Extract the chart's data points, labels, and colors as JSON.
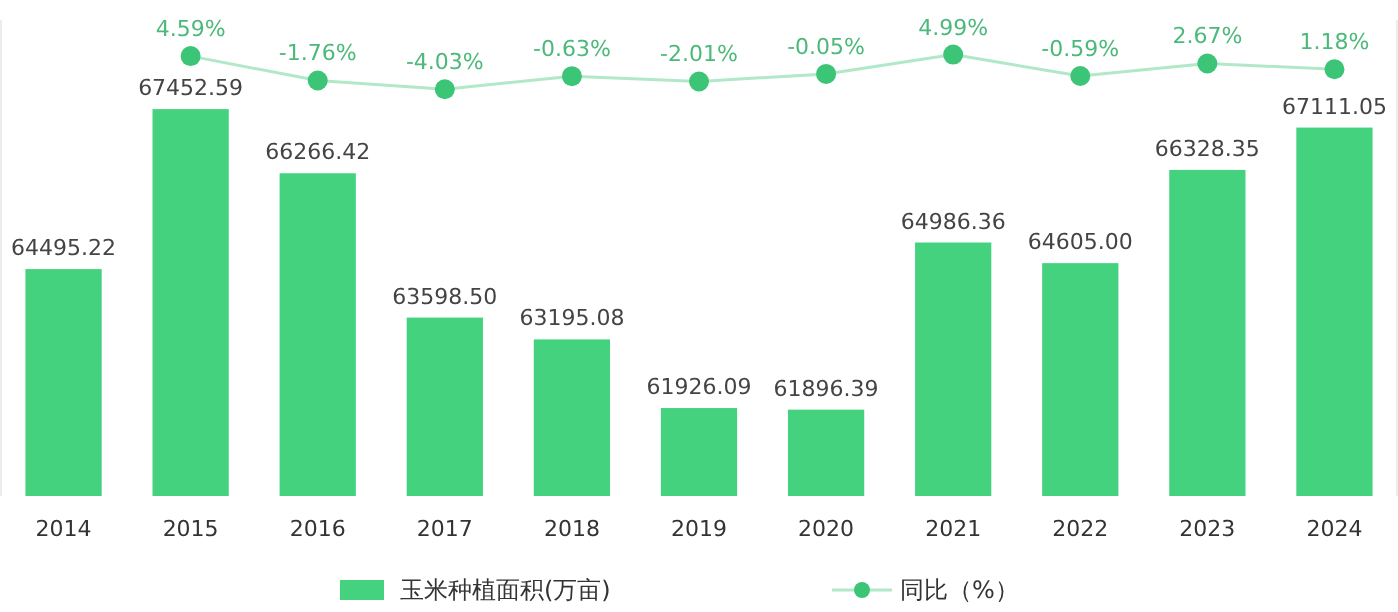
{
  "chart_data": [
    {
      "type": "bar",
      "categories": [
        "2014",
        "2015",
        "2016",
        "2017",
        "2018",
        "2019",
        "2020",
        "2021",
        "2022",
        "2023",
        "2024"
      ],
      "series": [
        {
          "name": "玉米种植面积(万亩)",
          "color": "#45d27f",
          "values": [
            64495.22,
            67452.59,
            66266.42,
            63598.5,
            63195.08,
            61926.09,
            61896.39,
            64986.36,
            64605.0,
            66328.35,
            67111.05
          ],
          "value_labels": [
            "64495.22",
            "67452.59",
            "66266.42",
            "63598.50",
            "63195.08",
            "61926.09",
            "61896.39",
            "64986.36",
            "64605.00",
            "66328.35",
            "67111.05"
          ]
        }
      ],
      "ylim": [
        60300,
        69100
      ],
      "legend": "bottom",
      "tick_labels": "x"
    },
    {
      "type": "line",
      "categories": [
        "2015",
        "2016",
        "2017",
        "2018",
        "2019",
        "2020",
        "2021",
        "2022",
        "2023",
        "2024"
      ],
      "series": [
        {
          "name": "同比（%）",
          "color": "#3cc576",
          "values": [
            4.59,
            -1.76,
            -4.03,
            -0.63,
            -2.01,
            -0.05,
            4.99,
            -0.59,
            2.67,
            1.18
          ],
          "value_labels": [
            "4.59%",
            "-1.76%",
            "-4.03%",
            "-0.63%",
            "-2.01%",
            "-0.05%",
            "4.99%",
            "-0.59%",
            "2.67%",
            "1.18%"
          ]
        }
      ],
      "ylim": [
        -110,
        14
      ],
      "legend": "bottom",
      "marker": "circle",
      "tick_labels": false
    }
  ]
}
